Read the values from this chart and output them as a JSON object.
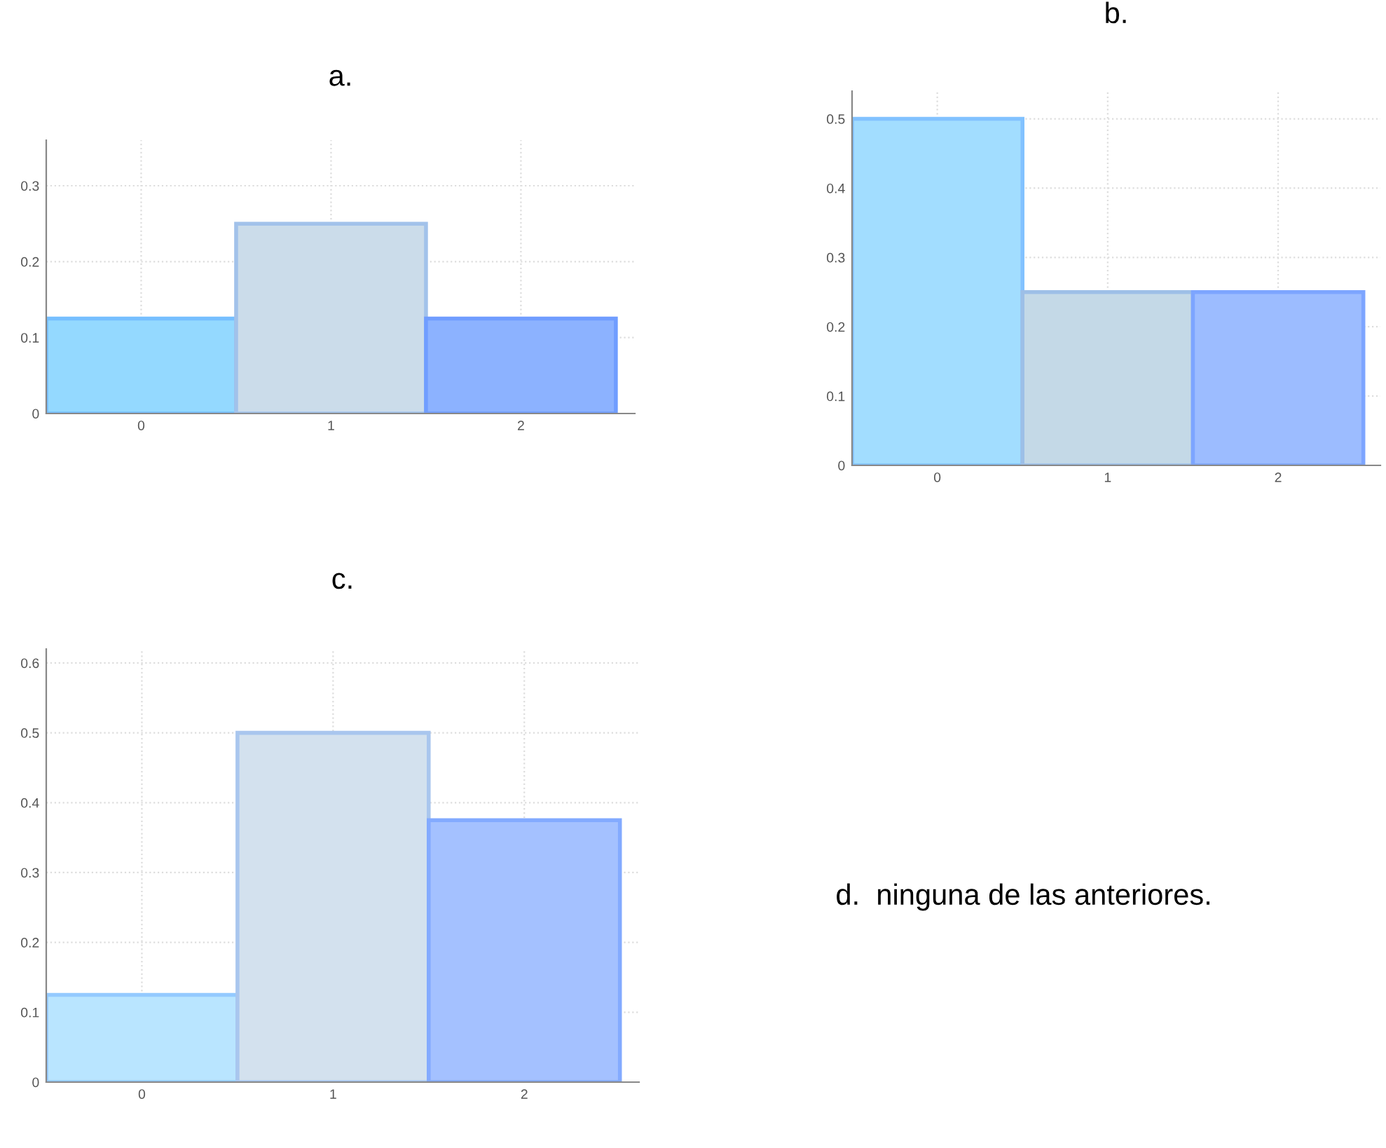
{
  "chart_data": [
    {
      "type": "bar",
      "title": "a.",
      "categories": [
        "0",
        "1",
        "2"
      ],
      "values": [
        0.125,
        0.25,
        0.125
      ],
      "colors": [
        "#94d9ff",
        "#cbdcea",
        "#8cb2ff"
      ],
      "ylim": [
        0,
        0.36
      ],
      "yticks": [
        0,
        0.1,
        0.2,
        0.3
      ],
      "grid": true
    },
    {
      "type": "bar",
      "title": "b.",
      "categories": [
        "0",
        "1",
        "2"
      ],
      "values": [
        0.5,
        0.25,
        0.25
      ],
      "colors": [
        "#a2ddff",
        "#c4d9e7",
        "#9cbcff"
      ],
      "ylim": [
        0,
        0.54
      ],
      "yticks": [
        0,
        0.1,
        0.2,
        0.3,
        0.4,
        0.5
      ],
      "grid": true
    },
    {
      "type": "bar",
      "title": "c.",
      "categories": [
        "0",
        "1",
        "2"
      ],
      "values": [
        0.125,
        0.5,
        0.375
      ],
      "colors": [
        "#b9e5ff",
        "#d3e1ee",
        "#a4c1ff"
      ],
      "ylim": [
        0,
        0.62
      ],
      "yticks": [
        0,
        0.1,
        0.2,
        0.3,
        0.4,
        0.5,
        0.6
      ],
      "grid": true
    },
    {
      "type": "other",
      "annotations": [
        "d.  ninguna de las anteriores."
      ]
    }
  ]
}
